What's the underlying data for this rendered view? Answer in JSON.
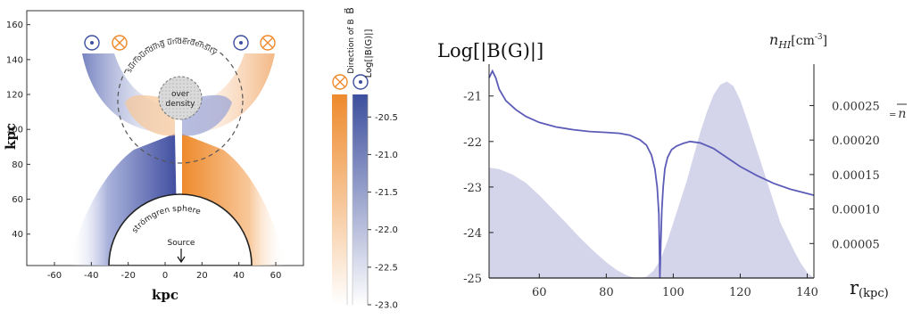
{
  "chart_data": [
    {
      "type": "heatmap",
      "title": "",
      "xlabel": "kpc",
      "ylabel": "kpc",
      "xlim": [
        -75,
        75
      ],
      "ylim": [
        22,
        168
      ],
      "x_ticks": [
        -60,
        -40,
        -20,
        0,
        20,
        40,
        60
      ],
      "y_ticks": [
        40,
        60,
        80,
        100,
        120,
        140,
        160
      ],
      "grid": false,
      "regions": [
        {
          "label": "over density",
          "center_kpc": [
            0,
            125
          ],
          "radius_kpc": 10
        },
        {
          "label": "surrounding underdensity",
          "center_kpc": [
            0,
            123
          ],
          "radius_kpc": 40
        },
        {
          "label": "strömgren sphere",
          "center_kpc": [
            0,
            0
          ],
          "radius_kpc": 47
        },
        {
          "label": "Source",
          "position_kpc": [
            0,
            22
          ]
        }
      ],
      "field_direction_markers": [
        {
          "symbol": "out-of-page",
          "position_kpc": [
            -47,
            149
          ]
        },
        {
          "symbol": "into-page",
          "position_kpc": [
            -32,
            149
          ]
        },
        {
          "symbol": "out-of-page",
          "position_kpc": [
            34,
            149
          ]
        },
        {
          "symbol": "into-page",
          "position_kpc": [
            49,
            149
          ]
        }
      ],
      "colors": {
        "into_page": "#ee8a2c",
        "out_of_page": "#3d4f9e"
      },
      "colorbar": {
        "label": "Log[|B(G)|]",
        "direction_label": "Direction of B",
        "direction_symbol": "B⃗",
        "range": [
          -23.0,
          -20.2
        ],
        "ticks": [
          -20.5,
          -21.0,
          -21.5,
          -22.0,
          -22.5,
          -23.0
        ],
        "tick_labels": [
          "-20.5",
          "-21.0",
          "-21.5",
          "-22.0",
          "-22.5",
          "-23.0"
        ]
      }
    },
    {
      "type": "line",
      "title": "",
      "ylabel": "Log[|B(G)|]",
      "ylabel_right": "n_HI [cm^-3]",
      "ylabel_right_base": "n",
      "ylabel_right_sub": "HI",
      "ylabel_right_units": "[cm",
      "ylabel_right_exp": "-3",
      "xlabel": "r",
      "xlabel_sub": "(kpc)",
      "mean_label": "=",
      "mean_symbol": "n",
      "xlim": [
        45,
        142
      ],
      "ylim": [
        -25,
        -20.3
      ],
      "ylim_right": [
        0,
        0.00031
      ],
      "x_ticks": [
        60,
        80,
        100,
        120,
        140
      ],
      "y_ticks": [
        -21,
        -22,
        -23,
        -24,
        -25
      ],
      "y_ticks_right": [
        5e-05,
        0.0001,
        0.00015,
        0.0002,
        0.00025
      ],
      "y_tick_labels_right": [
        "0.00005",
        "0.00010",
        "0.00015",
        "0.00020",
        "0.00025"
      ],
      "grid": false,
      "series": [
        {
          "kind": "line",
          "axis": "left",
          "color": "#5c5cb8",
          "x": [
            45,
            46,
            47,
            48,
            50,
            53,
            56,
            60,
            65,
            70,
            75,
            80,
            84,
            87,
            90,
            92,
            93.5,
            94.5,
            95.2,
            95.7,
            96,
            96.3,
            96.6,
            97,
            97.5,
            98.3,
            99.5,
            101,
            103,
            105,
            108,
            112,
            116,
            120,
            125,
            130,
            135,
            142
          ],
          "y": [
            -20.6,
            -20.45,
            -20.6,
            -20.85,
            -21.1,
            -21.3,
            -21.45,
            -21.58,
            -21.68,
            -21.74,
            -21.78,
            -21.8,
            -21.82,
            -21.86,
            -21.96,
            -22.08,
            -22.3,
            -22.6,
            -23.0,
            -23.6,
            -25.0,
            -24.2,
            -23.5,
            -23.0,
            -22.6,
            -22.35,
            -22.18,
            -22.1,
            -22.04,
            -22.0,
            -22.03,
            -22.15,
            -22.35,
            -22.55,
            -22.75,
            -22.92,
            -23.05,
            -23.18
          ]
        },
        {
          "kind": "area",
          "axis": "right",
          "color": "#d4d4ea",
          "x": [
            45,
            48,
            52,
            56,
            60,
            64,
            68,
            72,
            76,
            80,
            83,
            86,
            88,
            90,
            92,
            94,
            96,
            98,
            100,
            102,
            104,
            106,
            108,
            110,
            112,
            114,
            116,
            118,
            120,
            122,
            124,
            126,
            128,
            130,
            132,
            134,
            136,
            138,
            140,
            142
          ],
          "y": [
            0.00016,
            0.000158,
            0.00015,
            0.000138,
            0.00012,
            0.0001,
            8e-05,
            5.9e-05,
            4e-05,
            2.3e-05,
            1.2e-05,
            4e-06,
            1e-06,
            0,
            2e-06,
            1e-05,
            2.5e-05,
            5e-05,
            8e-05,
            0.00011,
            0.00014,
            0.000175,
            0.00021,
            0.00024,
            0.000265,
            0.00028,
            0.000285,
            0.000278,
            0.000258,
            0.00023,
            0.0002,
            0.00017,
            0.00014,
            0.00011,
            8e-05,
            6e-05,
            4e-05,
            2.2e-05,
            8e-06,
            0
          ]
        }
      ]
    }
  ]
}
